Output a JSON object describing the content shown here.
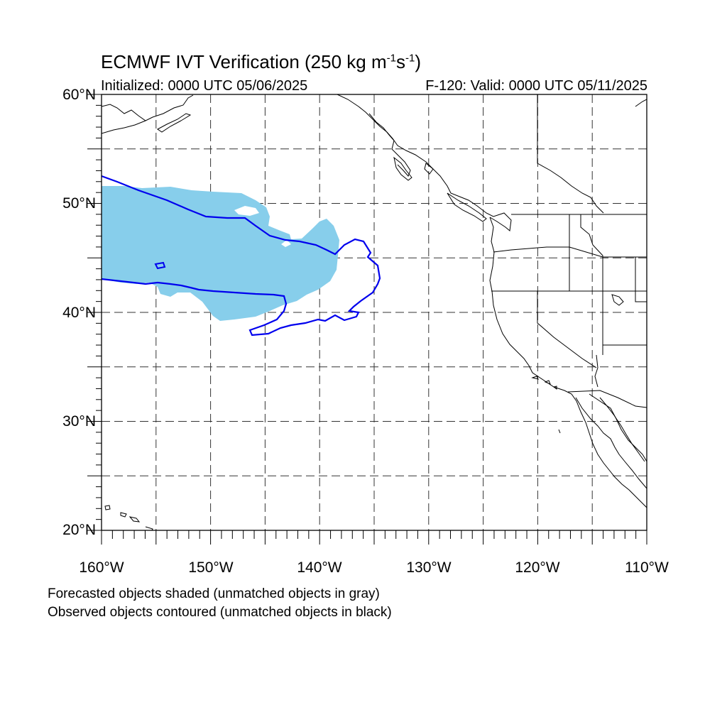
{
  "title": {
    "prefix": "ECMWF IVT Verification (250 kg m",
    "sup1": "-1",
    "mid": "s",
    "sup2": "-1",
    "suffix": ")"
  },
  "initialized": "Initialized: 0000 UTC 05/06/2025",
  "valid": "F-120: Valid: 0000 UTC 05/11/2025",
  "map": {
    "lon_range": [
      -160,
      -110
    ],
    "lat_range": [
      20,
      60
    ],
    "lat_labels": [
      "20°N",
      "30°N",
      "40°N",
      "50°N",
      "60°N"
    ],
    "lon_labels": [
      "160°W",
      "150°W",
      "140°W",
      "130°W",
      "120°W",
      "110°W"
    ],
    "gridlines": "dashed every 5°",
    "colors": {
      "forecast_fill": "#87ceeb",
      "observed_contour": "#0000ee",
      "coastline": "#000000"
    }
  },
  "legend": {
    "line1": "Forecasted objects shaded (unmatched objects in gray)",
    "line2": "Observed objects contoured (unmatched objects in black)"
  }
}
